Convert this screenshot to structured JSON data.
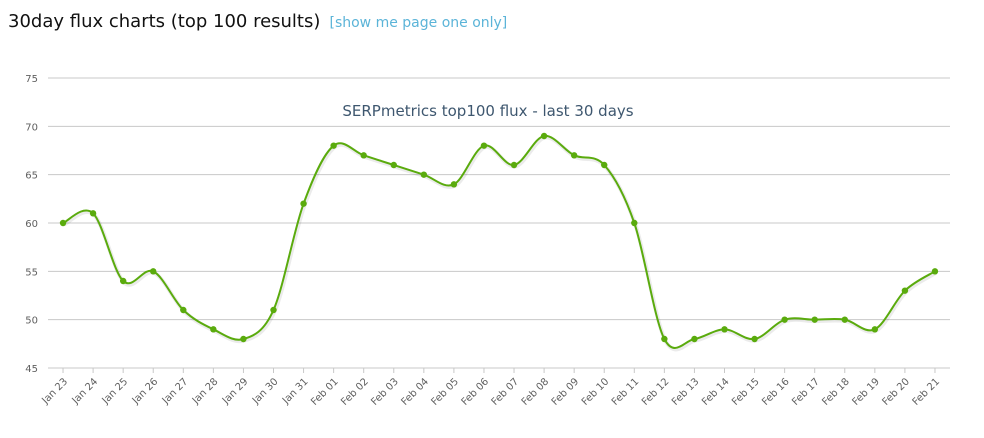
{
  "header": {
    "title": "30day flux charts (top 100 results)",
    "toggle_link": "[show me page one only]"
  },
  "colors": {
    "series": "#5aab0d",
    "grid": "#c8c8c8",
    "axis_text": "#606060",
    "chart_title": "#3e576f",
    "link": "#5bb4d8"
  },
  "chart_data": {
    "type": "line",
    "title": "SERPmetrics top100 flux - last 30 days",
    "xlabel": "",
    "ylabel": "",
    "ylim": [
      45,
      75
    ],
    "yticks": [
      45,
      50,
      55,
      60,
      65,
      70,
      75
    ],
    "grid": true,
    "legend": "none",
    "categories": [
      "Jan 23",
      "Jan 24",
      "Jan 25",
      "Jan 26",
      "Jan 27",
      "Jan 28",
      "Jan 29",
      "Jan 30",
      "Jan 31",
      "Feb 01",
      "Feb 02",
      "Feb 03",
      "Feb 04",
      "Feb 05",
      "Feb 06",
      "Feb 07",
      "Feb 08",
      "Feb 09",
      "Feb 10",
      "Feb 11",
      "Feb 12",
      "Feb 13",
      "Feb 14",
      "Feb 15",
      "Feb 16",
      "Feb 17",
      "Feb 18",
      "Feb 19",
      "Feb 20",
      "Feb 21"
    ],
    "series": [
      {
        "values": [
          60,
          61,
          54,
          55,
          51,
          49,
          48,
          51,
          62,
          68,
          67,
          66,
          65,
          64,
          68,
          66,
          69,
          67,
          66,
          60,
          48,
          48,
          49,
          48,
          50,
          50,
          50,
          49,
          53,
          55
        ]
      }
    ]
  }
}
